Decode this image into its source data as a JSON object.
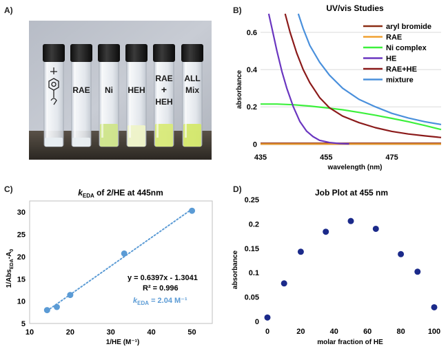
{
  "panel_labels": [
    "A)",
    "B)",
    "C)",
    "D)"
  ],
  "photo": {
    "vial_labels": [
      "RAE",
      "Ni",
      "HEH",
      "RAE + HEH",
      "ALL Mix"
    ],
    "cap_color": "#1b1b1b",
    "bench_color": "#3a3630"
  },
  "chart_data": [
    {
      "id": "B",
      "type": "line",
      "title": "UV/vis Studies",
      "xlabel": "wavelength (nm)",
      "ylabel": "absorbance",
      "xlim": [
        435,
        490
      ],
      "ylim": [
        -0.01,
        0.7
      ],
      "xticks": [
        435,
        455,
        475
      ],
      "yticks": [
        0,
        0.2,
        0.4,
        0.6
      ],
      "grid": "horizontal",
      "legend": "top-right",
      "series": [
        {
          "name": "aryl bromide",
          "color": "#8B2D14",
          "x": [
            435,
            490
          ],
          "y": [
            0.004,
            0.004
          ]
        },
        {
          "name": "RAE",
          "color": "#F0A030",
          "x": [
            435,
            490
          ],
          "y": [
            0.0,
            0.0
          ]
        },
        {
          "name": "Ni complex",
          "color": "#3CF03C",
          "x": [
            435,
            440,
            445,
            450,
            455,
            460,
            465,
            470,
            475,
            480,
            485,
            490
          ],
          "y": [
            0.215,
            0.215,
            0.211,
            0.204,
            0.195,
            0.184,
            0.17,
            0.155,
            0.138,
            0.12,
            0.1,
            0.078
          ]
        },
        {
          "name": "HE",
          "color": "#6A36C0",
          "x": [
            437.5,
            438.5,
            440,
            441.5,
            443,
            445,
            447,
            449,
            451,
            453,
            456,
            459,
            462
          ],
          "y": [
            0.7,
            0.62,
            0.5,
            0.39,
            0.3,
            0.2,
            0.12,
            0.07,
            0.04,
            0.02,
            0.008,
            0.003,
            0.001
          ]
        },
        {
          "name": "RAE+HE",
          "color": "#8B1A1A",
          "x": [
            442.5,
            444,
            446,
            448,
            450,
            453,
            456,
            460,
            465,
            470,
            475,
            480,
            485,
            490
          ],
          "y": [
            0.7,
            0.6,
            0.49,
            0.4,
            0.33,
            0.25,
            0.195,
            0.15,
            0.115,
            0.088,
            0.068,
            0.054,
            0.044,
            0.035
          ]
        },
        {
          "name": "mixture",
          "color": "#4A90DC",
          "x": [
            446.5,
            448,
            450,
            453,
            456,
            460,
            465,
            470,
            475,
            480,
            485,
            490
          ],
          "y": [
            0.7,
            0.62,
            0.53,
            0.44,
            0.37,
            0.3,
            0.24,
            0.2,
            0.165,
            0.14,
            0.12,
            0.105
          ]
        }
      ]
    },
    {
      "id": "C",
      "type": "scatter",
      "title_prefix": "k",
      "title_sub": "EDA",
      "title_rest": " of 2/HE at 445nm",
      "xlabel": "1/HE (M⁻¹)",
      "ylabel_main": "1/Abs",
      "ylabel_sub1": "EDA",
      "ylabel_mid": "-A",
      "ylabel_sub2": "0",
      "xlim": [
        10,
        55
      ],
      "ylim": [
        5,
        32.5
      ],
      "xticks": [
        10,
        20,
        30,
        40,
        50
      ],
      "yticks": [
        5,
        10,
        15,
        20,
        25,
        30
      ],
      "color": "#5B9BD5",
      "points": [
        [
          14.3,
          8.0
        ],
        [
          16.7,
          8.7
        ],
        [
          20.0,
          11.4
        ],
        [
          33.3,
          20.7
        ],
        [
          50.0,
          30.3
        ]
      ],
      "trendline": {
        "slope": 0.6397,
        "intercept": -1.3041,
        "x": [
          14.3,
          50.0
        ]
      },
      "equation": "y = 0.6397x - 1.3041",
      "r_squared": "R² = 0.996",
      "k_text_prefix": "k",
      "k_text_sub": "EDA",
      "k_text_rest": " = 2.04 M⁻¹"
    },
    {
      "id": "D",
      "type": "scatter",
      "title": "Job Plot at 455 nm",
      "xlabel": "molar fraction of HE",
      "ylabel": "absorbance",
      "xlim": [
        0,
        100
      ],
      "ylim": [
        0,
        0.25
      ],
      "xticks": [
        0,
        20,
        40,
        60,
        80,
        100
      ],
      "yticks": [
        0,
        0.05,
        0.1,
        0.15,
        0.2,
        0.25
      ],
      "color": "#1B2A8A",
      "points": [
        [
          0,
          0.008
        ],
        [
          10,
          0.078
        ],
        [
          20,
          0.143
        ],
        [
          35,
          0.184
        ],
        [
          50,
          0.206
        ],
        [
          65,
          0.19
        ],
        [
          80,
          0.138
        ],
        [
          90,
          0.102
        ],
        [
          100,
          0.029
        ]
      ]
    }
  ]
}
